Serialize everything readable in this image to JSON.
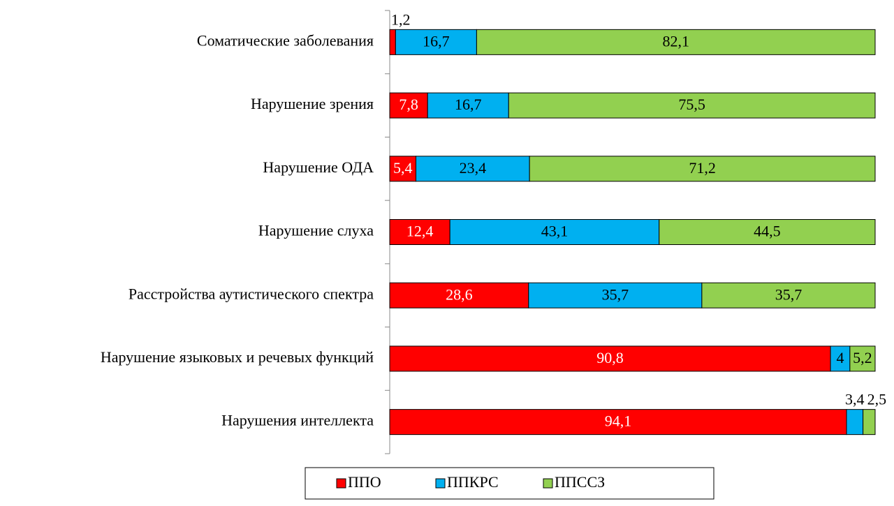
{
  "chart_data": {
    "type": "stacked-bar-horizontal",
    "categories": [
      "Соматические заболевания",
      "Нарушение зрения",
      "Нарушение ОДА",
      "Нарушение слуха",
      "Расстройства аутистического спектра",
      "Нарушение языковых и речевых функций",
      "Нарушения интеллекта"
    ],
    "series": [
      {
        "name": "ППО",
        "color": "#ff0000",
        "values": [
          1.2,
          7.8,
          5.4,
          12.4,
          28.6,
          90.8,
          94.1
        ],
        "value_labels": [
          "1,2",
          "7,8",
          "5,4",
          "12,4",
          "28,6",
          "90,8",
          "94,1"
        ]
      },
      {
        "name": "ППКРС",
        "color": "#00b0f0",
        "values": [
          16.7,
          16.7,
          23.4,
          43.1,
          35.7,
          4,
          3.4
        ],
        "value_labels": [
          "16,7",
          "16,7",
          "23,4",
          "43,1",
          "35,7",
          "4",
          "3,4"
        ]
      },
      {
        "name": "ППССЗ",
        "color": "#92d050",
        "values": [
          82.1,
          75.5,
          71.2,
          44.5,
          35.7,
          5.2,
          2.5
        ],
        "value_labels": [
          "82,1",
          "75,5",
          "71,2",
          "44,5",
          "35,7",
          "5,2",
          "2,5"
        ]
      }
    ],
    "xlim": [
      0,
      100
    ]
  }
}
